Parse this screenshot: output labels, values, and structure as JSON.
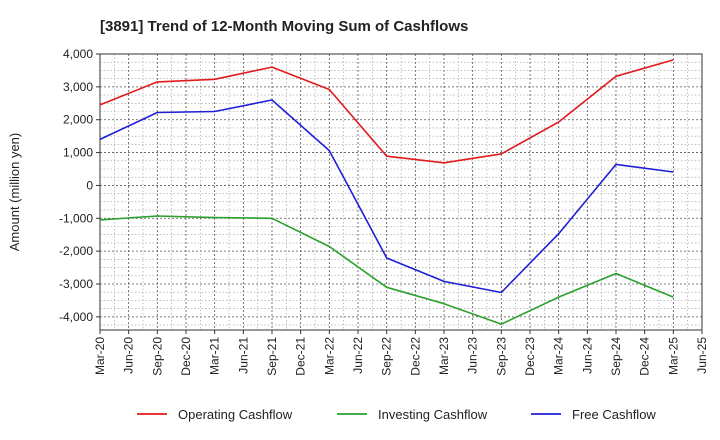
{
  "chart_data": {
    "type": "line",
    "title": "[3891]  Trend of 12-Month Moving Sum of Cashflows",
    "xlabel": "",
    "ylabel": "Amount (million yen)",
    "x_ticks": [
      "Mar-20",
      "Jun-20",
      "Sep-20",
      "Dec-20",
      "Mar-21",
      "Jun-21",
      "Sep-21",
      "Dec-21",
      "Mar-22",
      "Jun-22",
      "Sep-22",
      "Dec-22",
      "Mar-23",
      "Jun-23",
      "Sep-23",
      "Dec-23",
      "Mar-24",
      "Jun-24",
      "Sep-24",
      "Dec-24",
      "Mar-25",
      "Jun-25"
    ],
    "y_ticks": [
      4000,
      3000,
      2000,
      1000,
      0,
      -1000,
      -2000,
      -3000,
      -4000
    ],
    "y_tick_labels": [
      "4,000",
      "3,000",
      "2,000",
      "1,000",
      "0",
      "-1,000",
      "-2,000",
      "-3,000",
      "-4,000"
    ],
    "ylim": [
      -4400,
      4000
    ],
    "grid": true,
    "legend_position": "bottom",
    "series": [
      {
        "name": "Operating Cashflow",
        "color": "#e31a1c",
        "x": [
          "Mar-20",
          "Sep-20",
          "Mar-21",
          "Sep-21",
          "Mar-22",
          "Sep-22",
          "Mar-23",
          "Sep-23",
          "Mar-24",
          "Sep-24",
          "Mar-25"
        ],
        "values": [
          2450,
          3150,
          3230,
          3600,
          2920,
          890,
          690,
          960,
          1930,
          3320,
          3820
        ]
      },
      {
        "name": "Investing Cashflow",
        "color": "#2ca02c",
        "x": [
          "Mar-20",
          "Sep-20",
          "Mar-21",
          "Sep-21",
          "Mar-22",
          "Sep-22",
          "Mar-23",
          "Sep-23",
          "Mar-24",
          "Sep-24",
          "Mar-25"
        ],
        "values": [
          -1050,
          -930,
          -980,
          -1000,
          -1860,
          -3100,
          -3600,
          -4220,
          -3400,
          -2680,
          -3400
        ]
      },
      {
        "name": "Free Cashflow",
        "color": "#1f1fd6",
        "x": [
          "Mar-20",
          "Sep-20",
          "Mar-21",
          "Sep-21",
          "Mar-22",
          "Sep-22",
          "Mar-23",
          "Sep-23",
          "Mar-24",
          "Sep-24",
          "Mar-25"
        ],
        "values": [
          1400,
          2220,
          2250,
          2600,
          1060,
          -2210,
          -2920,
          -3260,
          -1470,
          640,
          410
        ]
      }
    ]
  }
}
